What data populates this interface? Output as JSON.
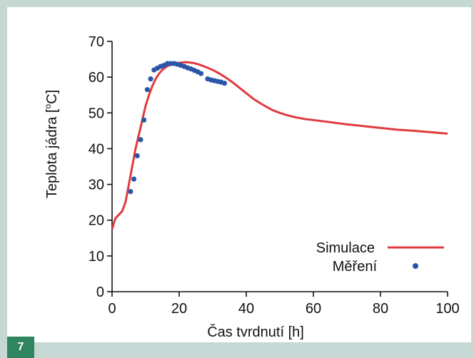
{
  "figure_number": "7",
  "colors": {
    "background": "#c6d8d3",
    "panel": "#ffffff",
    "simulation_line": "#e03a3e",
    "measurement_points": "#2a56a8",
    "badge": "#2f8560"
  },
  "chart_data": {
    "type": "line",
    "title": "",
    "xlabel": "Čas tvrdnutí [h]",
    "ylabel_main": "Teplota jádra [",
    "ylabel_sup": "o",
    "ylabel_end": "C]",
    "xlim": [
      0,
      100
    ],
    "ylim": [
      0,
      70
    ],
    "xticks": [
      "0",
      "20",
      "40",
      "60",
      "80",
      "100"
    ],
    "yticks": [
      "0",
      "10",
      "20",
      "30",
      "40",
      "50",
      "60",
      "70"
    ],
    "grid": false,
    "legend_position": "bottom-right",
    "series": [
      {
        "name": "Simulace",
        "kind": "line",
        "x": [
          0,
          1,
          2,
          3,
          4,
          5,
          6,
          7,
          8,
          9,
          10,
          11,
          12,
          13,
          14,
          15,
          16,
          17,
          18,
          19,
          20,
          22,
          24,
          26,
          28,
          30,
          32,
          34,
          36,
          38,
          40,
          42,
          44,
          46,
          48,
          50,
          52,
          55,
          58,
          60,
          65,
          70,
          75,
          80,
          85,
          90,
          95,
          100
        ],
        "y": [
          17.5,
          20.5,
          21.5,
          22.5,
          25,
          30,
          35,
          40,
          44,
          48,
          52,
          55,
          57.5,
          59.5,
          61,
          62,
          62.8,
          63.3,
          63.6,
          63.8,
          64,
          64.2,
          64,
          63.5,
          62.8,
          62,
          61,
          59.8,
          58.5,
          57,
          55.5,
          54,
          52.8,
          51.7,
          50.7,
          50,
          49.4,
          48.7,
          48.2,
          48,
          47.4,
          46.8,
          46.3,
          45.8,
          45.3,
          45,
          44.6,
          44.2
        ]
      },
      {
        "name": "Měření",
        "kind": "scatter",
        "x": [
          5.5,
          6.5,
          7.5,
          8.5,
          9.5,
          10.5,
          11.5,
          12.5,
          13.5,
          14.5,
          15.5,
          16.5,
          17.5,
          18.5,
          19.5,
          20.5,
          21.5,
          22.5,
          23.5,
          24.5,
          25.5,
          26.5,
          28.5,
          29.5,
          30.5,
          31.5,
          32.5,
          33.5
        ],
        "y": [
          28,
          31.5,
          38,
          42.5,
          48,
          56.5,
          59.5,
          62,
          62.5,
          63,
          63.3,
          63.8,
          63.8,
          63.8,
          63.6,
          63.3,
          63,
          62.6,
          62.3,
          61.9,
          61.5,
          61,
          59.5,
          59.2,
          59,
          58.8,
          58.6,
          58.3
        ]
      }
    ]
  }
}
